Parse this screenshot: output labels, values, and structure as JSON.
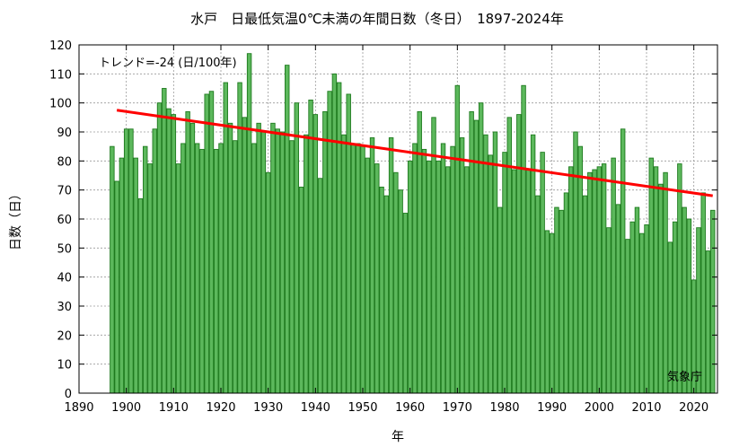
{
  "chart_data": {
    "type": "bar",
    "title": "水戸　日最低気温0℃未満の年間日数（冬日）　1897-2024年",
    "xlabel": "年",
    "ylabel": "日数（日）",
    "annotation": "トレンド=-24 (日/100年)",
    "credit": "気象庁",
    "xlim": [
      1890,
      2025
    ],
    "ylim": [
      0,
      120
    ],
    "xticks": [
      1890,
      1900,
      1910,
      1920,
      1930,
      1940,
      1950,
      1960,
      1970,
      1980,
      1990,
      2000,
      2010,
      2020
    ],
    "yticks": [
      0,
      10,
      20,
      30,
      40,
      50,
      60,
      70,
      80,
      90,
      100,
      110,
      120
    ],
    "grid": true,
    "bar_color": "#5cb85c",
    "bar_edge_color": "#1e7a1e",
    "trend_color": "#ff0000",
    "trend": {
      "start": [
        1898,
        97.5
      ],
      "end": [
        2024,
        68
      ]
    },
    "start_year": 1897,
    "values": [
      85,
      73,
      81,
      91,
      91,
      81,
      67,
      85,
      79,
      91,
      100,
      105,
      98,
      96,
      79,
      86,
      97,
      93,
      86,
      84,
      103,
      104,
      84,
      86,
      107,
      93,
      87,
      107,
      95,
      117,
      86,
      93,
      90,
      76,
      93,
      91,
      90,
      113,
      87,
      100,
      71,
      89,
      101,
      96,
      74,
      97,
      104,
      110,
      107,
      89,
      103,
      86,
      86,
      85,
      81,
      88,
      79,
      71,
      68,
      88,
      76,
      70,
      62,
      80,
      86,
      97,
      84,
      80,
      95,
      80,
      86,
      78,
      85,
      106,
      88,
      78,
      97,
      94,
      100,
      89,
      82,
      90,
      64,
      83,
      95,
      77,
      96,
      106,
      77,
      89,
      68,
      83,
      56,
      55,
      64,
      63,
      69,
      78,
      90,
      85,
      68,
      76,
      77,
      78,
      79,
      57,
      81,
      65,
      91,
      53,
      59,
      64,
      55,
      58,
      81,
      78,
      72,
      76,
      52,
      59,
      79,
      64,
      60,
      39,
      57,
      69,
      49,
      63
    ]
  }
}
